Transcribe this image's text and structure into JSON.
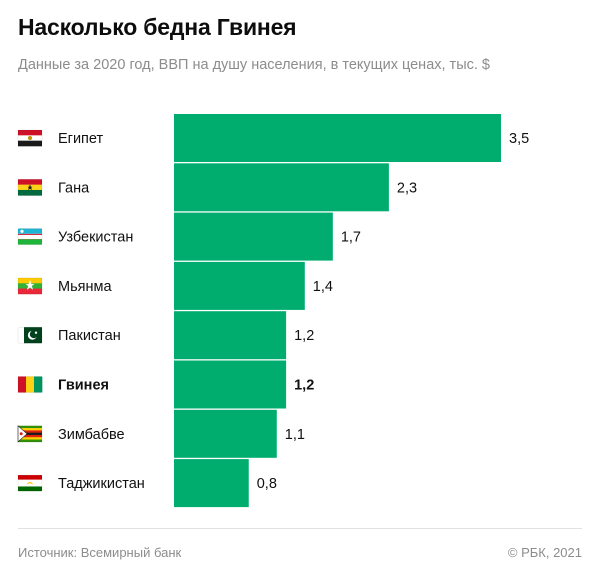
{
  "header": {
    "title": "Насколько бедна Гвинея",
    "subtitle": "Данные за 2020 год, ВВП на душу населения, в текущих ценах, тыс. $"
  },
  "footer": {
    "source": "Источник:  Всемирный банк",
    "copyright": "© РБК, 2021"
  },
  "colors": {
    "bar": "#00ad6e",
    "label": "#111111"
  },
  "chart_data": {
    "type": "bar",
    "orientation": "horizontal",
    "categories": [
      "Египет",
      "Гана",
      "Узбекистан",
      "Мьянма",
      "Пакистан",
      "Гвинея",
      "Зимбабве",
      "Таджикистан"
    ],
    "value_labels": [
      "3,5",
      "2,3",
      "1,7",
      "1,4",
      "1,2",
      "1,2",
      "1,1",
      "0,8"
    ],
    "values": [
      3.5,
      2.3,
      1.7,
      1.4,
      1.2,
      1.2,
      1.1,
      0.8
    ],
    "highlight": "Гвинея",
    "flags": [
      "egypt-flag-icon",
      "ghana-flag-icon",
      "uzbekistan-flag-icon",
      "myanmar-flag-icon",
      "pakistan-flag-icon",
      "guinea-flag-icon",
      "zimbabwe-flag-icon",
      "tajikistan-flag-icon"
    ],
    "xlim": [
      0,
      3.5
    ],
    "grid": false,
    "legend": "none"
  }
}
